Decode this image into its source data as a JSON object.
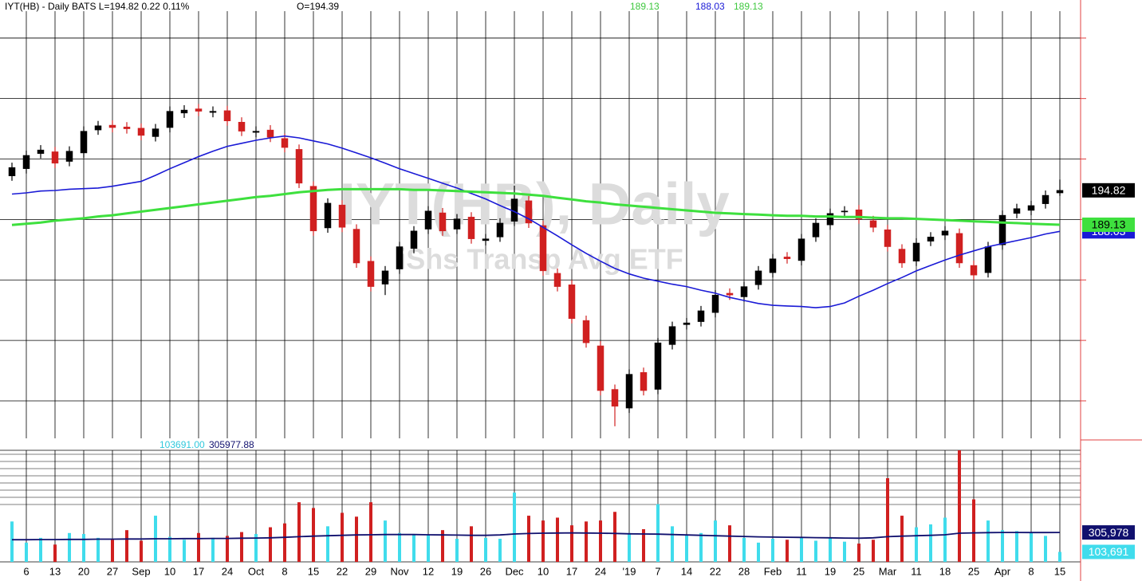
{
  "chart_data": {
    "type": "candlestick",
    "header": "IYT(HB) - Daily  BATS  L=194.82  0.22  0.11%",
    "open_label": "O=194.39",
    "watermark_title": "IYT(HB), Daily",
    "watermark_subtitle": "iShs Transp Avg ETF",
    "categories": [
      null,
      "6",
      null,
      "13",
      null,
      "20",
      null,
      "27",
      null,
      "Sep",
      null,
      "10",
      null,
      "17",
      null,
      "24",
      null,
      "Oct",
      null,
      "8",
      null,
      "15",
      null,
      "22",
      null,
      "29",
      null,
      "Nov",
      null,
      "12",
      null,
      "19",
      null,
      "26",
      null,
      "Dec",
      null,
      "10",
      null,
      "17",
      null,
      "24",
      null,
      "'19",
      null,
      "7",
      null,
      "14",
      null,
      "22",
      null,
      "28",
      null,
      "Feb",
      null,
      "11",
      null,
      "19",
      null,
      "25",
      null,
      "Mar",
      null,
      "11",
      null,
      "18",
      null,
      "25",
      null,
      "Apr",
      null,
      "8",
      null,
      "15"
    ],
    "open": [
      197.2,
      198.4,
      200.9,
      201.2,
      199.6,
      201.0,
      204.8,
      205.6,
      205.3,
      205.1,
      203.7,
      205.2,
      207.6,
      208.3,
      207.7,
      208.0,
      206.1,
      204.4,
      204.8,
      203.4,
      201.6,
      195.5,
      188.6,
      192.4,
      188.4,
      183.1,
      179.3,
      181.8,
      185.2,
      188.4,
      191.1,
      188.4,
      190.4,
      186.5,
      187.1,
      189.7,
      193.1,
      189.0,
      181.1,
      179.2,
      173.3,
      169.1,
      161.9,
      158.8,
      164.7,
      161.9,
      169.3,
      172.6,
      173.1,
      174.6,
      177.8,
      177.2,
      179.2,
      181.2,
      183.8,
      183.2,
      187.1,
      189.1,
      191.3,
      191.6,
      189.8,
      188.3,
      185.1,
      183.1,
      186.4,
      187.4,
      187.7,
      182.4,
      181.2,
      185.8,
      191.0,
      191.5,
      192.6,
      194.39
    ],
    "high": [
      199.4,
      201.4,
      202.3,
      202.0,
      202.1,
      205.4,
      206.3,
      206.4,
      206.1,
      205.9,
      205.8,
      208.7,
      208.9,
      209.1,
      208.7,
      208.8,
      206.9,
      205.4,
      205.6,
      204.2,
      202.4,
      196.3,
      193.5,
      193.2,
      189.2,
      183.9,
      182.3,
      186.3,
      188.9,
      192.2,
      191.9,
      190.9,
      191.2,
      187.6,
      190.2,
      195.6,
      193.9,
      189.8,
      181.9,
      180.0,
      174.1,
      169.9,
      162.7,
      165.2,
      165.5,
      170.4,
      173.1,
      173.7,
      175.7,
      178.3,
      178.6,
      179.7,
      182.3,
      184.3,
      184.6,
      187.6,
      190.2,
      191.8,
      192.2,
      192.4,
      190.6,
      189.1,
      185.9,
      186.9,
      187.9,
      188.9,
      188.5,
      183.2,
      186.3,
      191.5,
      192.6,
      193.1,
      194.8,
      196.6
    ],
    "low": [
      196.4,
      197.6,
      200.1,
      198.5,
      198.8,
      200.2,
      204.0,
      204.4,
      204.2,
      203.1,
      202.9,
      204.4,
      206.8,
      207.1,
      206.9,
      205.5,
      203.8,
      203.6,
      202.8,
      201.1,
      195.2,
      187.3,
      187.8,
      187.9,
      182.0,
      178.1,
      177.5,
      181.0,
      184.4,
      187.6,
      187.3,
      187.6,
      186.0,
      185.7,
      186.3,
      188.9,
      188.6,
      180.7,
      178.1,
      172.8,
      168.8,
      160.9,
      155.8,
      158.0,
      160.9,
      161.1,
      168.5,
      171.8,
      172.3,
      173.8,
      176.7,
      176.4,
      178.4,
      180.4,
      182.7,
      182.4,
      186.3,
      188.3,
      190.5,
      189.3,
      187.9,
      184.7,
      182.0,
      182.3,
      185.6,
      186.6,
      182.0,
      180.0,
      180.4,
      185.0,
      190.2,
      190.7,
      191.8,
      193.9
    ],
    "close": [
      198.6,
      200.6,
      201.5,
      199.3,
      201.3,
      204.6,
      205.5,
      205.2,
      205.0,
      203.9,
      205.0,
      207.9,
      208.1,
      207.9,
      207.9,
      206.3,
      204.6,
      204.6,
      203.6,
      201.9,
      196.0,
      188.1,
      192.7,
      188.7,
      182.8,
      178.9,
      181.5,
      185.5,
      188.1,
      191.4,
      188.1,
      190.1,
      186.8,
      186.8,
      189.4,
      193.4,
      189.4,
      181.5,
      178.9,
      173.6,
      169.6,
      161.7,
      159.1,
      164.4,
      161.7,
      169.6,
      172.3,
      172.9,
      174.9,
      177.5,
      177.5,
      178.9,
      181.5,
      183.5,
      183.5,
      186.8,
      189.4,
      191.0,
      191.4,
      190.1,
      188.7,
      185.5,
      182.8,
      186.1,
      187.1,
      188.1,
      182.8,
      180.8,
      185.5,
      190.7,
      191.8,
      192.3,
      194.0,
      194.82
    ],
    "up_color": "#000000",
    "down_color": "#d02020",
    "ma50": {
      "color": "#1a1ad6",
      "values": [
        194.2,
        194.4,
        194.7,
        194.8,
        195.0,
        195.1,
        195.2,
        195.5,
        195.9,
        196.3,
        197.3,
        198.4,
        199.4,
        200.4,
        201.3,
        202.1,
        202.6,
        203.1,
        203.5,
        203.8,
        203.5,
        203.0,
        202.5,
        201.8,
        201.0,
        200.2,
        199.3,
        198.4,
        197.6,
        196.8,
        196.0,
        195.2,
        194.3,
        193.4,
        192.3,
        191.3,
        190.1,
        188.7,
        187.3,
        185.8,
        184.4,
        183.1,
        181.9,
        181.0,
        180.3,
        179.8,
        179.3,
        178.9,
        178.3,
        177.8,
        177.1,
        176.6,
        176.1,
        175.8,
        175.7,
        175.6,
        175.4,
        175.6,
        176.2,
        177.3,
        178.3,
        179.4,
        180.4,
        181.5,
        182.4,
        183.3,
        184.1,
        184.8,
        185.5,
        186.0,
        186.5,
        187.0,
        187.6,
        188.03
      ]
    },
    "ma200": {
      "color": "#3ee03e",
      "values": [
        189.1,
        189.3,
        189.5,
        189.8,
        190.0,
        190.2,
        190.5,
        190.7,
        191.0,
        191.3,
        191.6,
        191.9,
        192.2,
        192.5,
        192.8,
        193.1,
        193.4,
        193.7,
        193.9,
        194.2,
        194.5,
        194.7,
        194.9,
        195.0,
        195.0,
        195.0,
        195.0,
        195.0,
        194.9,
        194.9,
        194.8,
        194.7,
        194.6,
        194.5,
        194.4,
        194.3,
        194.1,
        193.9,
        193.6,
        193.3,
        193.0,
        192.8,
        192.5,
        192.3,
        192.1,
        191.9,
        191.7,
        191.5,
        191.3,
        191.1,
        191.0,
        190.9,
        190.8,
        190.7,
        190.6,
        190.6,
        190.5,
        190.5,
        190.4,
        190.4,
        190.3,
        190.2,
        190.2,
        190.1,
        190.0,
        189.9,
        189.8,
        189.7,
        189.6,
        189.5,
        189.4,
        189.3,
        189.2,
        189.13
      ]
    },
    "ylim": [
      153.8,
      226.3
    ],
    "yticks": [
      160,
      170,
      180,
      190,
      200,
      210,
      220
    ],
    "grid": true,
    "volume": {
      "up_color": "#40dcec",
      "down_color": "#d02020",
      "ylim": [
        0,
        1160000
      ],
      "values": [
        420000,
        200000,
        250000,
        180000,
        300000,
        290000,
        250000,
        230000,
        330000,
        220000,
        480000,
        260000,
        230000,
        300000,
        250000,
        270000,
        310000,
        290000,
        360000,
        400000,
        620000,
        560000,
        370000,
        510000,
        470000,
        620000,
        430000,
        300000,
        290000,
        280000,
        330000,
        240000,
        370000,
        250000,
        240000,
        720000,
        480000,
        430000,
        460000,
        380000,
        420000,
        430000,
        520000,
        300000,
        340000,
        600000,
        370000,
        280000,
        300000,
        430000,
        380000,
        250000,
        200000,
        240000,
        230000,
        260000,
        220000,
        250000,
        210000,
        190000,
        230000,
        870000,
        480000,
        360000,
        390000,
        460000,
        1160000,
        650000,
        430000,
        330000,
        320000,
        300000,
        270000,
        103691
      ],
      "last_header_label": "103691.00",
      "last_badge_label": "103,691"
    },
    "volume_ma": {
      "color": "#10106e",
      "values": [
        230000,
        230000,
        232000,
        232000,
        234000,
        234000,
        236000,
        236000,
        238000,
        238000,
        240000,
        240000,
        242000,
        242000,
        244000,
        244000,
        246000,
        248000,
        250000,
        255000,
        262000,
        268000,
        272000,
        276000,
        280000,
        282000,
        284000,
        284000,
        284000,
        282000,
        280000,
        278000,
        276000,
        276000,
        280000,
        290000,
        295000,
        298000,
        300000,
        302000,
        300000,
        298000,
        296000,
        292000,
        290000,
        288000,
        284000,
        280000,
        276000,
        272000,
        268000,
        264000,
        260000,
        258000,
        256000,
        254000,
        252000,
        250000,
        248000,
        246000,
        250000,
        262000,
        268000,
        272000,
        276000,
        282000,
        298000,
        302000,
        304000,
        306000,
        306000,
        305000,
        305000,
        305977.88
      ],
      "last_header_label": "305977.88",
      "last_badge_label": "305,978"
    }
  }
}
